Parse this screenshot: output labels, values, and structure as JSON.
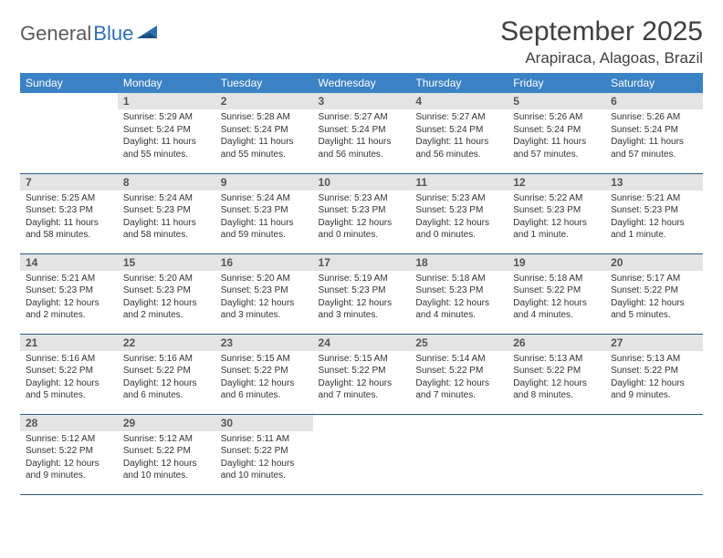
{
  "logo": {
    "part1": "General",
    "part2": "Blue"
  },
  "title": "September 2025",
  "location": "Arapiraca, Alagoas, Brazil",
  "colors": {
    "header_bg": "#3b82c4",
    "header_text": "#ffffff",
    "daynum_bg": "#e4e4e4",
    "border": "#2c5a8a",
    "logo_gray": "#5a5a5a",
    "logo_blue": "#2f6fb0"
  },
  "day_headers": [
    "Sunday",
    "Monday",
    "Tuesday",
    "Wednesday",
    "Thursday",
    "Friday",
    "Saturday"
  ],
  "weeks": [
    [
      {
        "n": "",
        "sr": "",
        "ss": "",
        "dl": ""
      },
      {
        "n": "1",
        "sr": "Sunrise: 5:29 AM",
        "ss": "Sunset: 5:24 PM",
        "dl": "Daylight: 11 hours and 55 minutes."
      },
      {
        "n": "2",
        "sr": "Sunrise: 5:28 AM",
        "ss": "Sunset: 5:24 PM",
        "dl": "Daylight: 11 hours and 55 minutes."
      },
      {
        "n": "3",
        "sr": "Sunrise: 5:27 AM",
        "ss": "Sunset: 5:24 PM",
        "dl": "Daylight: 11 hours and 56 minutes."
      },
      {
        "n": "4",
        "sr": "Sunrise: 5:27 AM",
        "ss": "Sunset: 5:24 PM",
        "dl": "Daylight: 11 hours and 56 minutes."
      },
      {
        "n": "5",
        "sr": "Sunrise: 5:26 AM",
        "ss": "Sunset: 5:24 PM",
        "dl": "Daylight: 11 hours and 57 minutes."
      },
      {
        "n": "6",
        "sr": "Sunrise: 5:26 AM",
        "ss": "Sunset: 5:24 PM",
        "dl": "Daylight: 11 hours and 57 minutes."
      }
    ],
    [
      {
        "n": "7",
        "sr": "Sunrise: 5:25 AM",
        "ss": "Sunset: 5:23 PM",
        "dl": "Daylight: 11 hours and 58 minutes."
      },
      {
        "n": "8",
        "sr": "Sunrise: 5:24 AM",
        "ss": "Sunset: 5:23 PM",
        "dl": "Daylight: 11 hours and 58 minutes."
      },
      {
        "n": "9",
        "sr": "Sunrise: 5:24 AM",
        "ss": "Sunset: 5:23 PM",
        "dl": "Daylight: 11 hours and 59 minutes."
      },
      {
        "n": "10",
        "sr": "Sunrise: 5:23 AM",
        "ss": "Sunset: 5:23 PM",
        "dl": "Daylight: 12 hours and 0 minutes."
      },
      {
        "n": "11",
        "sr": "Sunrise: 5:23 AM",
        "ss": "Sunset: 5:23 PM",
        "dl": "Daylight: 12 hours and 0 minutes."
      },
      {
        "n": "12",
        "sr": "Sunrise: 5:22 AM",
        "ss": "Sunset: 5:23 PM",
        "dl": "Daylight: 12 hours and 1 minute."
      },
      {
        "n": "13",
        "sr": "Sunrise: 5:21 AM",
        "ss": "Sunset: 5:23 PM",
        "dl": "Daylight: 12 hours and 1 minute."
      }
    ],
    [
      {
        "n": "14",
        "sr": "Sunrise: 5:21 AM",
        "ss": "Sunset: 5:23 PM",
        "dl": "Daylight: 12 hours and 2 minutes."
      },
      {
        "n": "15",
        "sr": "Sunrise: 5:20 AM",
        "ss": "Sunset: 5:23 PM",
        "dl": "Daylight: 12 hours and 2 minutes."
      },
      {
        "n": "16",
        "sr": "Sunrise: 5:20 AM",
        "ss": "Sunset: 5:23 PM",
        "dl": "Daylight: 12 hours and 3 minutes."
      },
      {
        "n": "17",
        "sr": "Sunrise: 5:19 AM",
        "ss": "Sunset: 5:23 PM",
        "dl": "Daylight: 12 hours and 3 minutes."
      },
      {
        "n": "18",
        "sr": "Sunrise: 5:18 AM",
        "ss": "Sunset: 5:23 PM",
        "dl": "Daylight: 12 hours and 4 minutes."
      },
      {
        "n": "19",
        "sr": "Sunrise: 5:18 AM",
        "ss": "Sunset: 5:22 PM",
        "dl": "Daylight: 12 hours and 4 minutes."
      },
      {
        "n": "20",
        "sr": "Sunrise: 5:17 AM",
        "ss": "Sunset: 5:22 PM",
        "dl": "Daylight: 12 hours and 5 minutes."
      }
    ],
    [
      {
        "n": "21",
        "sr": "Sunrise: 5:16 AM",
        "ss": "Sunset: 5:22 PM",
        "dl": "Daylight: 12 hours and 5 minutes."
      },
      {
        "n": "22",
        "sr": "Sunrise: 5:16 AM",
        "ss": "Sunset: 5:22 PM",
        "dl": "Daylight: 12 hours and 6 minutes."
      },
      {
        "n": "23",
        "sr": "Sunrise: 5:15 AM",
        "ss": "Sunset: 5:22 PM",
        "dl": "Daylight: 12 hours and 6 minutes."
      },
      {
        "n": "24",
        "sr": "Sunrise: 5:15 AM",
        "ss": "Sunset: 5:22 PM",
        "dl": "Daylight: 12 hours and 7 minutes."
      },
      {
        "n": "25",
        "sr": "Sunrise: 5:14 AM",
        "ss": "Sunset: 5:22 PM",
        "dl": "Daylight: 12 hours and 7 minutes."
      },
      {
        "n": "26",
        "sr": "Sunrise: 5:13 AM",
        "ss": "Sunset: 5:22 PM",
        "dl": "Daylight: 12 hours and 8 minutes."
      },
      {
        "n": "27",
        "sr": "Sunrise: 5:13 AM",
        "ss": "Sunset: 5:22 PM",
        "dl": "Daylight: 12 hours and 9 minutes."
      }
    ],
    [
      {
        "n": "28",
        "sr": "Sunrise: 5:12 AM",
        "ss": "Sunset: 5:22 PM",
        "dl": "Daylight: 12 hours and 9 minutes."
      },
      {
        "n": "29",
        "sr": "Sunrise: 5:12 AM",
        "ss": "Sunset: 5:22 PM",
        "dl": "Daylight: 12 hours and 10 minutes."
      },
      {
        "n": "30",
        "sr": "Sunrise: 5:11 AM",
        "ss": "Sunset: 5:22 PM",
        "dl": "Daylight: 12 hours and 10 minutes."
      },
      {
        "n": "",
        "sr": "",
        "ss": "",
        "dl": ""
      },
      {
        "n": "",
        "sr": "",
        "ss": "",
        "dl": ""
      },
      {
        "n": "",
        "sr": "",
        "ss": "",
        "dl": ""
      },
      {
        "n": "",
        "sr": "",
        "ss": "",
        "dl": ""
      }
    ]
  ]
}
